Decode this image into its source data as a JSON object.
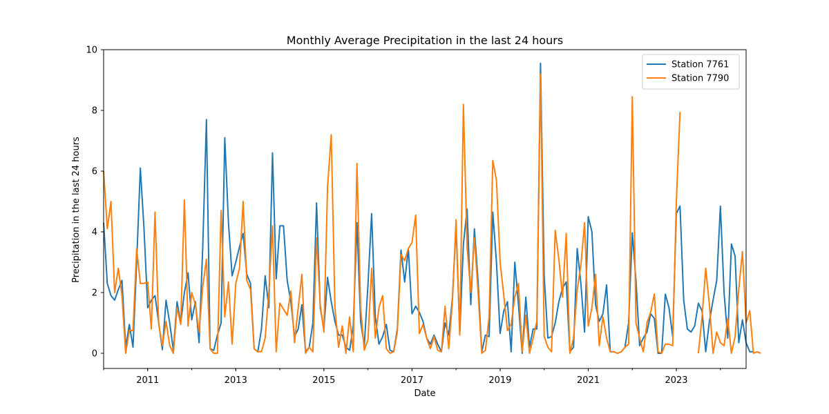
{
  "chart_data": {
    "type": "line",
    "title": "Monthly Average Precipitation in the last 24 hours",
    "xlabel": "Date",
    "ylabel": "Precipitation in the last 24 hours",
    "x_start": "2010-01",
    "xlim": [
      "2010-01",
      "2024-08"
    ],
    "ylim": [
      -0.5,
      10
    ],
    "yticks": [
      0,
      2,
      4,
      6,
      8,
      10
    ],
    "xticks": [
      "2011",
      "2013",
      "2015",
      "2017",
      "2019",
      "2021",
      "2023"
    ],
    "legend_position": "upper-right",
    "series": [
      {
        "name": "Station 7761",
        "color": "#1f77b4",
        "values": [
          4.3,
          2.3,
          1.9,
          1.75,
          2.1,
          2.4,
          0.2,
          0.95,
          0.2,
          3.0,
          6.1,
          4.1,
          1.5,
          1.75,
          1.9,
          1.0,
          0.12,
          1.75,
          1.0,
          0.1,
          1.7,
          1.0,
          2.0,
          2.65,
          1.1,
          1.7,
          0.35,
          3.5,
          7.7,
          0.15,
          0.1,
          0.6,
          1.0,
          7.1,
          4.3,
          2.55,
          3.0,
          3.5,
          3.95,
          2.6,
          2.3,
          0.15,
          0.05,
          0.8,
          2.55,
          1.5,
          6.6,
          2.45,
          4.2,
          4.2,
          2.4,
          1.7,
          0.55,
          0.8,
          1.6,
          0.05,
          0.2,
          1.0,
          4.95,
          1.5,
          0.8,
          2.5,
          1.7,
          1.05,
          0.6,
          0.6,
          0.2,
          0.1,
          0.9,
          4.3,
          1.05,
          0.25,
          2.25,
          4.6,
          1.2,
          0.3,
          0.55,
          0.95,
          0.1,
          0.05,
          0.8,
          3.4,
          2.35,
          3.45,
          1.3,
          1.55,
          1.35,
          1.05,
          0.5,
          0.3,
          0.6,
          0.3,
          0.05,
          1.0,
          0.6,
          1.8,
          4.2,
          0.65,
          3.6,
          4.75,
          1.6,
          4.1,
          2.35,
          0.05,
          0.6,
          0.55,
          4.65,
          3.0,
          0.65,
          1.4,
          1.7,
          0.05,
          3.0,
          1.6,
          0.0,
          1.85,
          0.2,
          0.8,
          0.8,
          9.55,
          2.55,
          0.5,
          0.55,
          1.0,
          1.7,
          2.15,
          2.35,
          0.05,
          0.2,
          3.45,
          2.3,
          0.7,
          4.5,
          4.0,
          1.6,
          1.05,
          1.3,
          2.25,
          0.05,
          0.05,
          0.0,
          0.05,
          0.2,
          1.0,
          3.97,
          2.4,
          0.25,
          0.5,
          0.7,
          1.3,
          1.15,
          0.0,
          0.0,
          1.95,
          1.5,
          0.55,
          4.6,
          4.85,
          1.75,
          0.8,
          0.7,
          0.9,
          1.65,
          1.4,
          0.05,
          1.05,
          1.75,
          2.4,
          4.85,
          2.0,
          0.5,
          3.6,
          3.2,
          0.35,
          1.1,
          0.35,
          0.05,
          0.05
        ],
        "first_month": "2010-01"
      },
      {
        "name": "Station 7790",
        "color": "#ff7f0e",
        "values": [
          6.0,
          4.1,
          5.0,
          2.0,
          2.8,
          1.9,
          0.0,
          0.75,
          0.75,
          3.45,
          2.3,
          2.3,
          2.35,
          0.8,
          4.65,
          0.95,
          0.25,
          1.05,
          0.25,
          0.0,
          1.5,
          0.95,
          5.05,
          0.9,
          2.0,
          1.6,
          0.7,
          2.2,
          3.1,
          0.15,
          0.0,
          0.0,
          4.7,
          1.2,
          2.35,
          0.3,
          2.3,
          2.8,
          5.0,
          2.4,
          2.1,
          0.15,
          0.05,
          0.05,
          0.5,
          2.0,
          4.2,
          0.05,
          1.65,
          1.45,
          1.25,
          2.05,
          0.35,
          1.5,
          2.6,
          0.0,
          0.2,
          0.05,
          3.8,
          1.6,
          0.7,
          5.5,
          7.2,
          1.5,
          0.2,
          0.9,
          0.0,
          1.2,
          0.05,
          6.25,
          1.5,
          0.1,
          0.45,
          2.8,
          0.5,
          1.5,
          1.9,
          0.15,
          0.0,
          0.05,
          0.7,
          3.25,
          3.05,
          3.45,
          3.65,
          4.55,
          0.65,
          0.95,
          0.5,
          0.15,
          0.55,
          0.1,
          0.05,
          1.55,
          0.15,
          1.7,
          4.4,
          0.6,
          8.2,
          3.5,
          2.0,
          3.8,
          2.0,
          0.0,
          0.1,
          1.2,
          6.35,
          5.7,
          3.0,
          1.9,
          0.75,
          0.95,
          1.85,
          2.3,
          0.05,
          1.25,
          0.0,
          0.5,
          1.05,
          9.2,
          0.55,
          0.2,
          0.05,
          4.05,
          3.1,
          1.85,
          3.95,
          0.0,
          0.5,
          2.1,
          2.9,
          4.3,
          0.9,
          1.5,
          2.6,
          0.25,
          1.2,
          0.5,
          0.05,
          0.05,
          0.0,
          0.05,
          0.2,
          0.3,
          8.45,
          1.0,
          0.5,
          0.05,
          1.0,
          1.35,
          1.95,
          0.05,
          0.0,
          0.3,
          0.3,
          0.25,
          5.0,
          7.95,
          null,
          null,
          null,
          null,
          0.0,
          1.2,
          2.8,
          1.6,
          0.0,
          0.7,
          0.35,
          0.25,
          1.15,
          0.0,
          0.55,
          2.1,
          3.35,
          1.0,
          1.4,
          0.0,
          0.05,
          0.0
        ],
        "first_month": "2010-01"
      }
    ]
  }
}
